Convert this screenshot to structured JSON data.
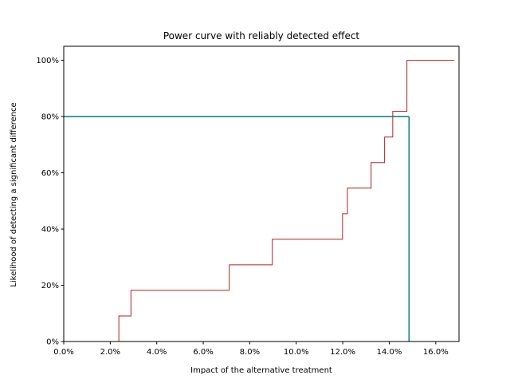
{
  "chart_data": {
    "type": "line",
    "title": "Power curve with reliably detected effect",
    "xlabel": "Impact of the alternative treatment",
    "ylabel": "Likelihood of detecting a significant difference",
    "xlim": [
      0.0,
      0.17
    ],
    "ylim": [
      0.0,
      1.05
    ],
    "x_ticks": [
      0.0,
      0.02,
      0.04,
      0.06,
      0.08,
      0.1,
      0.12,
      0.14,
      0.16
    ],
    "x_tick_labels": [
      "0.0%",
      "2.0%",
      "4.0%",
      "6.0%",
      "8.0%",
      "10.0%",
      "12.0%",
      "14.0%",
      "16.0%"
    ],
    "y_ticks": [
      0.0,
      0.2,
      0.4,
      0.6,
      0.8,
      1.0
    ],
    "y_tick_labels": [
      "0%",
      "20%",
      "40%",
      "60%",
      "80%",
      "100%"
    ],
    "grid": false,
    "series": [
      {
        "style": "step-post",
        "color": "#b22222",
        "x": [
          0.0237,
          0.0289,
          0.0712,
          0.0897,
          0.1199,
          0.122,
          0.1322,
          0.138,
          0.1415,
          0.1476,
          0.168
        ],
        "y": [
          0.0909,
          0.1818,
          0.2727,
          0.3636,
          0.4545,
          0.5455,
          0.6364,
          0.7273,
          0.8182,
          1.0,
          1.0
        ]
      }
    ],
    "reference_lines": [
      {
        "orientation": "horizontal",
        "y": 0.8,
        "x_from": 0.0,
        "x_to": 0.1485,
        "color": "#007b7f"
      },
      {
        "orientation": "vertical",
        "x": 0.1485,
        "y_from": 0.0,
        "y_to": 0.8,
        "color": "#007b7f"
      }
    ]
  }
}
